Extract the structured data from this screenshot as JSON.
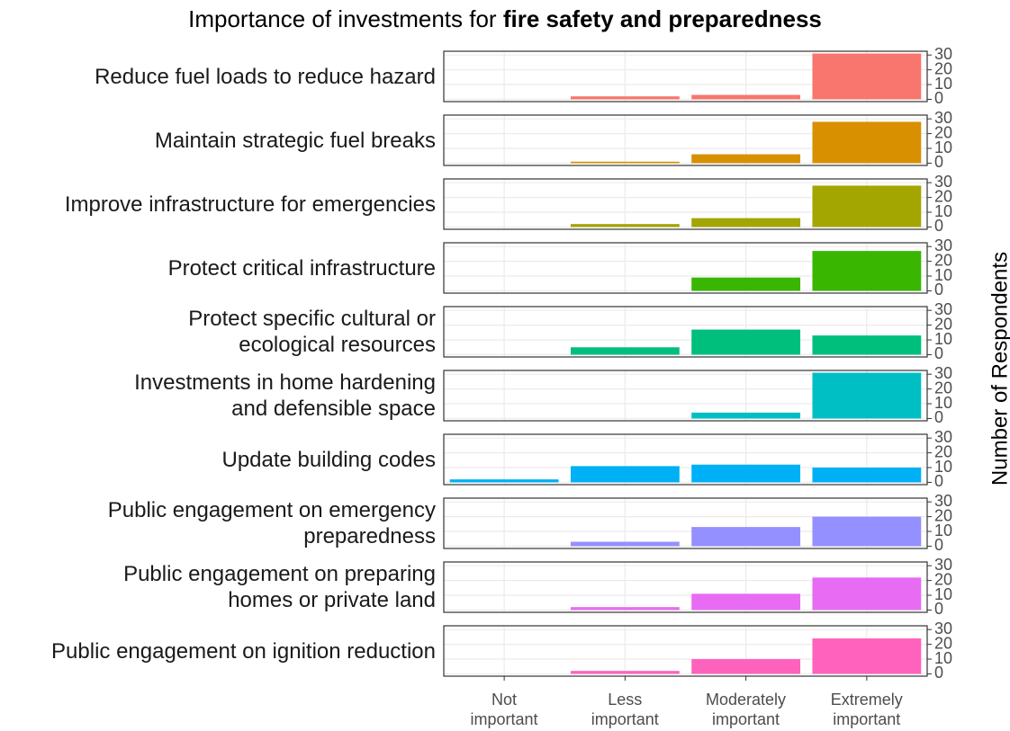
{
  "title": {
    "text": "Importance of investments for",
    "bold": "fire safety and preparedness"
  },
  "y_label": "Number of Respondents",
  "categories": [
    "Not\nimportant",
    "Less\nimportant",
    "Moderately\nimportant",
    "Extremely\nimportant"
  ],
  "chart_data": [
    {
      "type": "bar",
      "title": "Reduce fuel loads to reduce hazard",
      "values": [
        0,
        2,
        3,
        31
      ],
      "color": "#F8766D",
      "ylim": [
        -1.55,
        32.55
      ],
      "yticks": [
        0,
        10,
        20,
        30
      ],
      "grid": true
    },
    {
      "type": "bar",
      "title": "Maintain strategic fuel breaks",
      "values": [
        0,
        1,
        6,
        28
      ],
      "color": "#D89000",
      "ylim": [
        -1.55,
        32.55
      ],
      "yticks": [
        0,
        10,
        20,
        30
      ],
      "grid": true
    },
    {
      "type": "bar",
      "title": "Improve infrastructure for emergencies",
      "values": [
        0,
        2,
        6,
        28
      ],
      "color": "#A3A500",
      "ylim": [
        -1.55,
        32.55
      ],
      "yticks": [
        0,
        10,
        20,
        30
      ],
      "grid": true
    },
    {
      "type": "bar",
      "title": "Protect critical infrastructure",
      "values": [
        0,
        0,
        9,
        27
      ],
      "color": "#39B600",
      "ylim": [
        -1.55,
        32.55
      ],
      "yticks": [
        0,
        10,
        20,
        30
      ],
      "grid": true
    },
    {
      "type": "bar",
      "title": "Protect specific cultural or\necological resources",
      "values": [
        0,
        5,
        17,
        13
      ],
      "color": "#00BF7D",
      "ylim": [
        -1.55,
        32.55
      ],
      "yticks": [
        0,
        10,
        20,
        30
      ],
      "grid": true
    },
    {
      "type": "bar",
      "title": "Investments in home hardening\nand defensible space",
      "values": [
        0,
        0,
        4,
        31
      ],
      "color": "#00BFC4",
      "ylim": [
        -1.55,
        32.55
      ],
      "yticks": [
        0,
        10,
        20,
        30
      ],
      "grid": true
    },
    {
      "type": "bar",
      "title": "Update building codes",
      "values": [
        2,
        11,
        12,
        10
      ],
      "color": "#00B0F6",
      "ylim": [
        -1.55,
        32.55
      ],
      "yticks": [
        0,
        10,
        20,
        30
      ],
      "grid": true
    },
    {
      "type": "bar",
      "title": "Public engagement on emergency\npreparedness",
      "values": [
        0,
        3,
        13,
        20
      ],
      "color": "#9590FF",
      "ylim": [
        -1.55,
        32.55
      ],
      "yticks": [
        0,
        10,
        20,
        30
      ],
      "grid": true
    },
    {
      "type": "bar",
      "title": "Public engagement on preparing\nhomes or private land",
      "values": [
        0,
        2,
        11,
        22
      ],
      "color": "#E76BF3",
      "ylim": [
        -1.55,
        32.55
      ],
      "yticks": [
        0,
        10,
        20,
        30
      ],
      "grid": true
    },
    {
      "type": "bar",
      "title": "Public engagement on ignition reduction",
      "values": [
        0,
        2,
        10,
        24
      ],
      "color": "#FF62BC",
      "ylim": [
        -1.55,
        32.55
      ],
      "yticks": [
        0,
        10,
        20,
        30
      ],
      "grid": true
    }
  ]
}
